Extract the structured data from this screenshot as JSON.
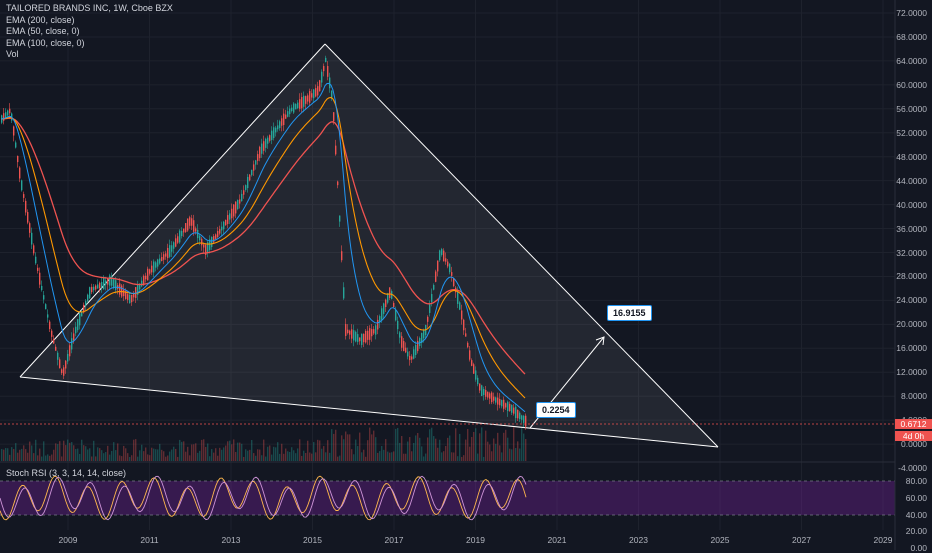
{
  "legend": {
    "title": "TAILORED BRANDS INC, 1W, Cboe BZX",
    "ema200": "EMA (200, close)",
    "ema50": "EMA (50, close, 0)",
    "ema100": "EMA (100, close, 0)",
    "vol": "Vol"
  },
  "price_axis": [
    "72.0000",
    "68.0000",
    "64.0000",
    "60.0000",
    "56.0000",
    "52.0000",
    "48.0000",
    "44.0000",
    "40.0000",
    "36.0000",
    "32.0000",
    "28.0000",
    "24.0000",
    "20.0000",
    "16.0000",
    "12.0000",
    "8.0000",
    "4.0000",
    "0.0000",
    "-4.0000"
  ],
  "current_price": "0.6712",
  "countdown": "4d 0h",
  "time_axis": [
    "2009",
    "2011",
    "2013",
    "2015",
    "2017",
    "2019",
    "2021",
    "2023",
    "2025",
    "2027",
    "2029"
  ],
  "callouts": {
    "low": "0.2254",
    "target": "16.9155"
  },
  "stoch": {
    "label": "Stoch RSI (3, 3, 14, 14, close)",
    "axis": [
      "80.00",
      "60.00",
      "40.00",
      "20.00",
      "0.00"
    ]
  },
  "colors": {
    "background": "#131722",
    "ema200": "#ef5350",
    "ema100": "#ff9800",
    "ema50": "#2196f3",
    "triangle": "#ffffff",
    "stoch_band": "#7b1fa2",
    "stoch_k": "#ce93d8",
    "stoch_d": "#ffb74d"
  }
}
